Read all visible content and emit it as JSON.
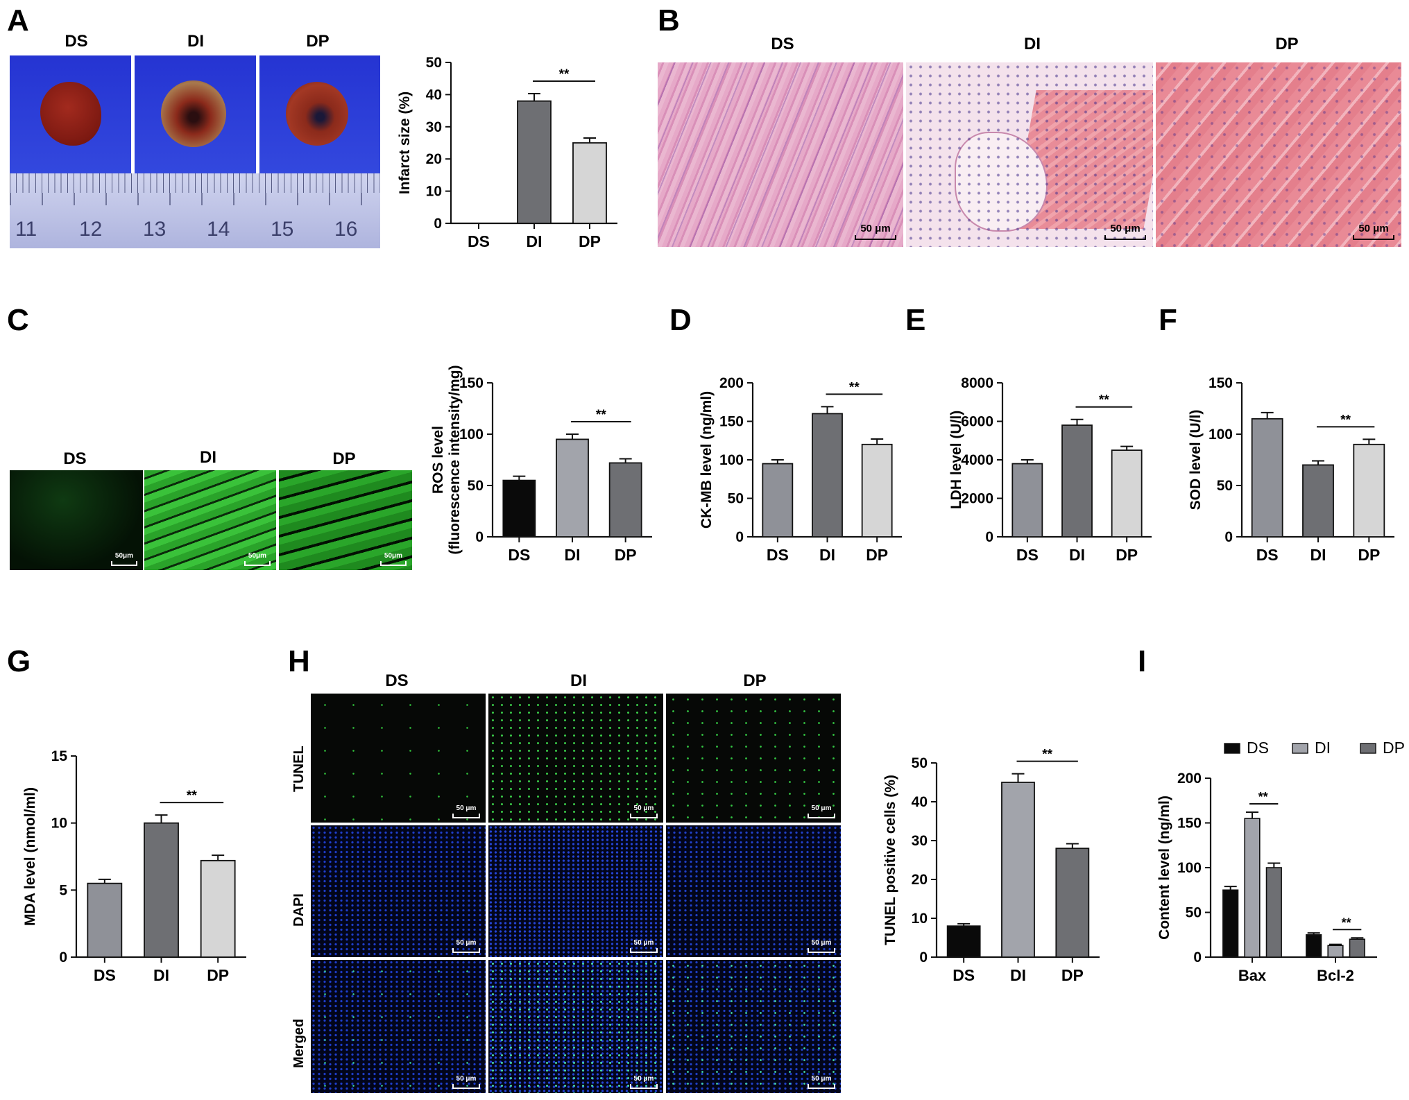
{
  "panels": {
    "A": {
      "letter": "A",
      "images": [
        "DS",
        "DI",
        "DP"
      ],
      "ruler": [
        "11",
        "12",
        "13",
        "14",
        "15",
        "16"
      ]
    },
    "B": {
      "letter": "B",
      "images": [
        "DS",
        "DI",
        "DP"
      ],
      "scale": "50 μm"
    },
    "C": {
      "letter": "C",
      "images": [
        "DS",
        "DI",
        "DP"
      ],
      "scale": "50μm"
    },
    "D": {
      "letter": "D"
    },
    "E": {
      "letter": "E"
    },
    "F": {
      "letter": "F"
    },
    "G": {
      "letter": "G"
    },
    "H": {
      "letter": "H",
      "columns": [
        "DS",
        "DI",
        "DP"
      ],
      "rows": [
        "TUNEL",
        "DAPI",
        "Merged"
      ],
      "scale": "50 μm"
    },
    "I": {
      "letter": "I"
    }
  },
  "colors": {
    "black": "#0a0a0a",
    "gray_mid": "#8f9198",
    "gray_dark": "#6e6f73",
    "gray_light": "#d6d6d6",
    "gray_lighter": "#a2a4ab"
  },
  "chart_data": [
    {
      "id": "A",
      "type": "bar",
      "categories": [
        "DS",
        "DI",
        "DP"
      ],
      "values": [
        0,
        38,
        25
      ],
      "errors": [
        0,
        2.3,
        1.5
      ],
      "colors": [
        "#8a8b8f",
        "#6e6f73",
        "#d6d6d6"
      ],
      "ylabel": "Infarct size (%)",
      "ylim": [
        0,
        50
      ],
      "yticks": [
        "0",
        "10",
        "20",
        "30",
        "40",
        "50"
      ],
      "sig": [
        {
          "from": 1,
          "to": 2,
          "label": "**"
        }
      ]
    },
    {
      "id": "C",
      "type": "bar",
      "categories": [
        "DS",
        "DI",
        "DP"
      ],
      "values": [
        55,
        95,
        72
      ],
      "errors": [
        4,
        5,
        4
      ],
      "colors": [
        "#0a0a0a",
        "#a2a4ab",
        "#6e6f73"
      ],
      "ylabel": "ROS level",
      "ylabel2": "(fluorescence intensity/mg)",
      "ylim": [
        0,
        150
      ],
      "yticks": [
        "0",
        "50",
        "100",
        "150"
      ],
      "sig": [
        {
          "from": 1,
          "to": 2,
          "label": "**"
        }
      ]
    },
    {
      "id": "D",
      "type": "bar",
      "categories": [
        "DS",
        "DI",
        "DP"
      ],
      "values": [
        95,
        160,
        120
      ],
      "errors": [
        5,
        9,
        7
      ],
      "colors": [
        "#8f9198",
        "#6e6f73",
        "#d6d6d6"
      ],
      "ylabel": "CK-MB level (ng/ml)",
      "ylim": [
        0,
        200
      ],
      "yticks": [
        "0",
        "50",
        "100",
        "150",
        "200"
      ],
      "sig": [
        {
          "from": 1,
          "to": 2,
          "label": "**"
        }
      ]
    },
    {
      "id": "E",
      "type": "bar",
      "categories": [
        "DS",
        "DI",
        "DP"
      ],
      "values": [
        3800,
        5800,
        4500
      ],
      "errors": [
        200,
        300,
        200
      ],
      "colors": [
        "#8f9198",
        "#6e6f73",
        "#d6d6d6"
      ],
      "ylabel": "LDH level (U/l)",
      "ylim": [
        0,
        8000
      ],
      "yticks": [
        "0",
        "2000",
        "4000",
        "6000",
        "8000"
      ],
      "sig": [
        {
          "from": 1,
          "to": 2,
          "label": "**"
        }
      ]
    },
    {
      "id": "F",
      "type": "bar",
      "categories": [
        "DS",
        "DI",
        "DP"
      ],
      "values": [
        115,
        70,
        90
      ],
      "errors": [
        6,
        4,
        5
      ],
      "colors": [
        "#8f9198",
        "#6e6f73",
        "#d6d6d6"
      ],
      "ylabel": "SOD level  (U/l)",
      "ylim": [
        0,
        150
      ],
      "yticks": [
        "0",
        "50",
        "100",
        "150"
      ],
      "sig": [
        {
          "from": 1,
          "to": 2,
          "label": "**"
        }
      ]
    },
    {
      "id": "G",
      "type": "bar",
      "categories": [
        "DS",
        "DI",
        "DP"
      ],
      "values": [
        5.5,
        10,
        7.2
      ],
      "errors": [
        0.3,
        0.6,
        0.4
      ],
      "colors": [
        "#8f9198",
        "#6e6f73",
        "#d6d6d6"
      ],
      "ylabel": "MDA level (nmol/ml)",
      "ylim": [
        0,
        15
      ],
      "yticks": [
        "0",
        "5",
        "10",
        "15"
      ],
      "sig": [
        {
          "from": 1,
          "to": 2,
          "label": "**"
        }
      ]
    },
    {
      "id": "H",
      "type": "bar",
      "categories": [
        "DS",
        "DI",
        "DP"
      ],
      "values": [
        8,
        45,
        28
      ],
      "errors": [
        0.6,
        2.2,
        1.2
      ],
      "colors": [
        "#0a0a0a",
        "#a2a4ab",
        "#6e6f73"
      ],
      "ylabel": "TUNEL positive cells (%)",
      "ylim": [
        0,
        50
      ],
      "yticks": [
        "0",
        "10",
        "20",
        "30",
        "40",
        "50"
      ],
      "sig": [
        {
          "from": 1,
          "to": 2,
          "label": "**"
        }
      ]
    },
    {
      "id": "I",
      "type": "bar",
      "grouped": true,
      "categories": [
        "Bax",
        "Bcl-2"
      ],
      "series": [
        {
          "name": "DS",
          "values": [
            75,
            25
          ],
          "errors": [
            4,
            2
          ],
          "color": "#0a0a0a"
        },
        {
          "name": "DI",
          "values": [
            155,
            13
          ],
          "errors": [
            7,
            1.2
          ],
          "color": "#a2a4ab"
        },
        {
          "name": "DP",
          "values": [
            100,
            20
          ],
          "errors": [
            5,
            1.5
          ],
          "color": "#6e6f73"
        }
      ],
      "ylabel": "Content level (ng/ml)",
      "ylim": [
        0,
        200
      ],
      "yticks": [
        "0",
        "50",
        "100",
        "150",
        "200"
      ],
      "legend": "top",
      "sig": [
        {
          "group": 0,
          "from": 1,
          "to": 2,
          "label": "**"
        },
        {
          "group": 1,
          "from": 1,
          "to": 2,
          "label": "**"
        }
      ]
    }
  ]
}
